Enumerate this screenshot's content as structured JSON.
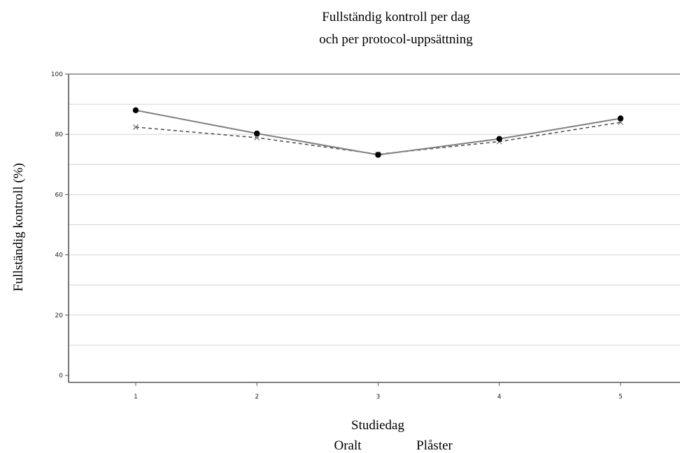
{
  "chart_data": {
    "type": "line",
    "title": [
      "Fullständig kontroll per dag",
      "och per protocol-uppsättning"
    ],
    "xlabel": "Studiedag",
    "ylabel": "Fullständig kontroll (%)",
    "x": [
      1,
      2,
      3,
      4,
      5
    ],
    "xticks": [
      "1",
      "2",
      "3",
      "4",
      "5"
    ],
    "yticks": [
      "0",
      "20",
      "40",
      "60",
      "80",
      "100"
    ],
    "ylim": [
      0,
      100
    ],
    "grid": true,
    "legend_labels": [
      "Oralt",
      "Plåster"
    ],
    "series": [
      {
        "name": "Oralt",
        "values": [
          88,
          80.3,
          73.2,
          78.5,
          85.3
        ],
        "color": "#808080",
        "line_style": "solid",
        "marker": "filled-circle",
        "marker_color": "#000000"
      },
      {
        "name": "Plåster",
        "values": [
          82.4,
          78.9,
          73.4,
          77.6,
          84
        ],
        "color": "#555555",
        "line_style": "dashed",
        "marker": "x",
        "marker_color": "#777777"
      }
    ]
  }
}
